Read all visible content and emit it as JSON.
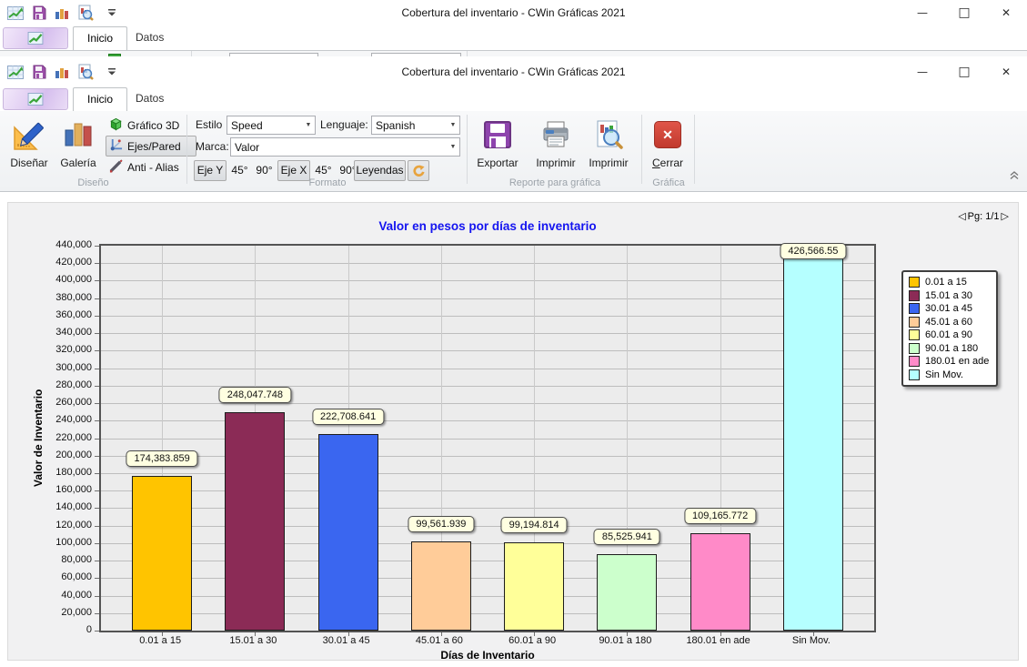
{
  "window": {
    "title": "Cobertura del inventario - CWin Gráficas 2021",
    "tabs": [
      {
        "label": "Inicio"
      },
      {
        "label": "Datos"
      }
    ]
  },
  "icons": {
    "minimize": "—",
    "maximize": "□",
    "close": "✕",
    "dropdown_arrow": "▼",
    "page_prev": "◁",
    "page_next": "▷"
  },
  "ribbon": {
    "diseno": {
      "group_label": "Diseño",
      "disenar": "Diseñar",
      "galeria": "Galería",
      "grafico_3d": "Gráfico 3D",
      "ejes_pared": "Ejes/Pared",
      "anti_alias": "Anti - Alias"
    },
    "formato": {
      "group_label": "Formato",
      "estilo_label": "Estilo",
      "estilo_value": "Speed",
      "lenguaje_label": "Lenguaje:",
      "lenguaje_value": "Spanish",
      "marca_label": "Marca:",
      "marca_value": "Valor",
      "eje_y": "Eje Y",
      "deg_45": "45°",
      "deg_90": "90°",
      "eje_x": "Eje X",
      "leyendas": "Leyendas"
    },
    "reporte": {
      "group_label": "Reporte para gráfica",
      "exportar": "Exportar",
      "imprimir_1": "Imprimir",
      "imprimir_2": "Imprimir"
    },
    "grafica": {
      "group_label": "Gráfica",
      "cerrar": "Cerrar"
    }
  },
  "page_nav": {
    "label": "Pg: 1/1"
  },
  "chart_data": {
    "type": "bar",
    "title": "Valor en pesos por días de inventario",
    "xlabel": "Días de Inventario",
    "ylabel": "Valor de Inventario",
    "categories": [
      "0.01 a 15",
      "15.01 a 30",
      "30.01 a 45",
      "45.01 a 60",
      "60.01 a 90",
      "90.01 a 180",
      "180.01 en ade",
      "Sin Mov."
    ],
    "values": [
      174383.859,
      248047.748,
      222708.641,
      99561.939,
      99194.814,
      85525.941,
      109165.772,
      426566.55
    ],
    "value_labels": [
      "174,383.859",
      "248,047.748",
      "222,708.641",
      "99,561.939",
      "99,194.814",
      "85,525.941",
      "109,165.772",
      "426,566.55"
    ],
    "colors": [
      "#FFC400",
      "#8B2B56",
      "#3A66F0",
      "#FFCC99",
      "#FFFF99",
      "#CCFFCC",
      "#FF8AC8",
      "#B5FFFF"
    ],
    "ylim": [
      0,
      440000
    ],
    "ytick_step": 20000,
    "grid": true,
    "legend_position": "right"
  }
}
